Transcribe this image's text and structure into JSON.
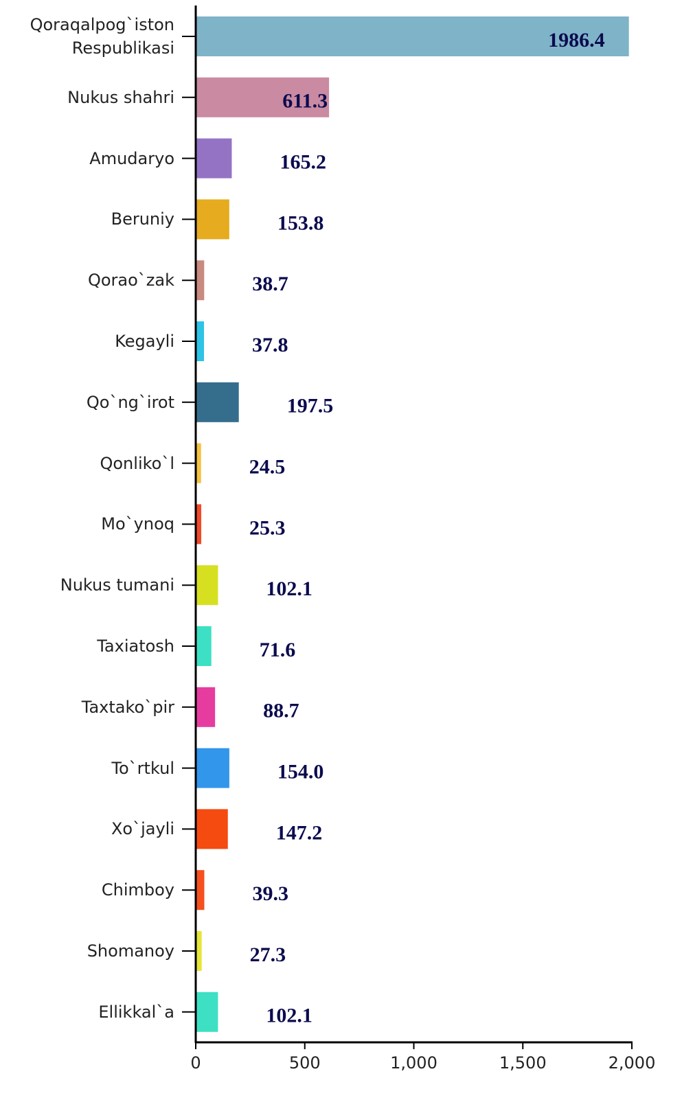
{
  "chart_data": {
    "type": "bar",
    "orientation": "horizontal",
    "categories": [
      "Qoraqalpog`iston Respublikasi",
      "Nukus shahri",
      "Amudaryo",
      "Beruniy",
      "Qorao`zak",
      "Kegayli",
      "Qo`ng`irot",
      "Qonliko`l",
      "Mo`ynoq",
      "Nukus tumani",
      "Taxiatosh",
      "Taxtako`pir",
      "To`rtkul",
      "Xo`jayli",
      "Chimboy",
      "Shomanoy",
      "Ellikkal`a"
    ],
    "values": [
      1986.4,
      611.3,
      165.2,
      153.8,
      38.7,
      37.8,
      197.5,
      24.5,
      25.3,
      102.1,
      71.6,
      88.7,
      154.0,
      147.2,
      39.3,
      27.3,
      102.1
    ],
    "value_labels": [
      "1986.4",
      "611.3",
      "165.2",
      "153.8",
      "38.7",
      "37.8",
      "197.5",
      "24.5",
      "25.3",
      "102.1",
      "71.6",
      "88.7",
      "154.0",
      "147.2",
      "39.3",
      "27.3",
      "102.1"
    ],
    "colors": [
      "#7fb3c8",
      "#c98aa2",
      "#9473c4",
      "#e6ab1e",
      "#c98a80",
      "#2ec4e6",
      "#356e8c",
      "#f5c242",
      "#f04a2a",
      "#d6e020",
      "#3de0c4",
      "#e63ca0",
      "#3296eb",
      "#f54a10",
      "#f5501e",
      "#e6e63a",
      "#3ee0c4"
    ],
    "xlim": [
      0,
      2000
    ],
    "xticks": [
      0,
      500,
      {
        "value": 1000,
        "label": "1,000"
      },
      {
        "value": 1500,
        "label": "1,500"
      },
      {
        "value": 2000,
        "label": "2,000"
      }
    ]
  }
}
